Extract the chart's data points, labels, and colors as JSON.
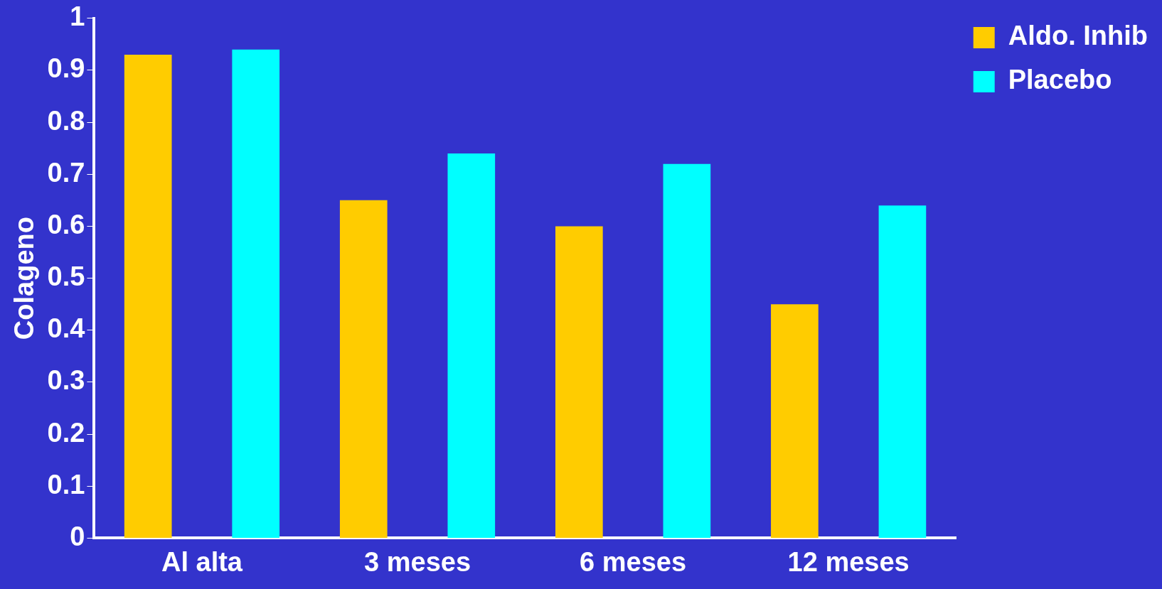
{
  "chart_data": {
    "type": "bar",
    "ylabel": "Colageno",
    "categories": [
      "Al alta",
      "3 meses",
      "6 meses",
      "12 meses"
    ],
    "series": [
      {
        "name": "Aldo. Inhib",
        "color": "#ffcc00",
        "values": [
          0.93,
          0.65,
          0.6,
          0.45
        ]
      },
      {
        "name": "Placebo",
        "color": "#00ffff",
        "values": [
          0.94,
          0.74,
          0.72,
          0.64
        ]
      }
    ],
    "ylim": [
      0,
      1
    ],
    "yticks": [
      0,
      0.1,
      0.2,
      0.3,
      0.4,
      0.5,
      0.6,
      0.7,
      0.8,
      0.9,
      1
    ],
    "grid": false,
    "legend": "top right"
  }
}
